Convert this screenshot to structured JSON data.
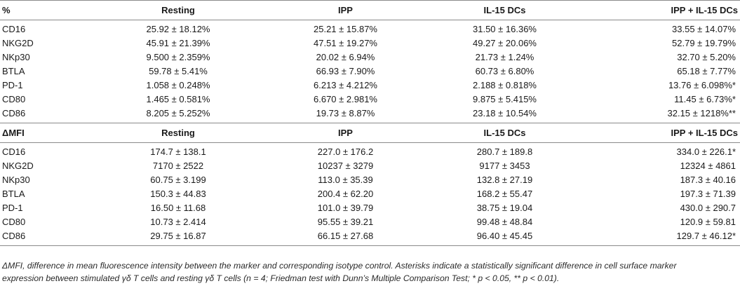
{
  "sections": [
    {
      "unit_label": "%",
      "columns": [
        "Resting",
        "IPP",
        "IL-15 DCs",
        "IPP + IL-15 DCs"
      ],
      "rows": [
        {
          "marker": "CD16",
          "values": [
            "25.92 ± 18.12%",
            "25.21 ± 15.87%",
            "31.50 ± 16.36%",
            "33.55 ± 14.07%"
          ]
        },
        {
          "marker": "NKG2D",
          "values": [
            "45.91 ± 21.39%",
            "47.51 ± 19.27%",
            "49.27 ± 20.06%",
            "52.79 ± 19.79%"
          ]
        },
        {
          "marker": "NKp30",
          "values": [
            "9.500 ± 2.359%",
            "20.02 ± 6.94%",
            "21.73 ± 1.24%",
            "32.70 ± 5.20%"
          ]
        },
        {
          "marker": "BTLA",
          "values": [
            "59.78 ± 5.41%",
            "66.93 ± 7.90%",
            "60.73 ± 6.80%",
            "65.18 ± 7.77%"
          ]
        },
        {
          "marker": "PD-1",
          "values": [
            "1.058 ± 0.248%",
            "6.213 ± 4.212%",
            "2.188 ± 0.818%",
            "13.76 ± 6.098%*"
          ]
        },
        {
          "marker": "CD80",
          "values": [
            "1.465 ± 0.581%",
            "6.670 ± 2.981%",
            "9.875 ± 5.415%",
            "11.45 ± 6.73%*"
          ]
        },
        {
          "marker": "CD86",
          "values": [
            "8.205 ± 5.252%",
            "19.73 ± 8.87%",
            "23.18 ± 10.54%",
            "32.15 ± 1218%**"
          ]
        }
      ]
    },
    {
      "unit_label": "ΔMFI",
      "columns": [
        "Resting",
        "IPP",
        "IL-15 DCs",
        "IPP + IL-15 DCs"
      ],
      "rows": [
        {
          "marker": "CD16",
          "values": [
            "174.7 ± 138.1",
            "227.0 ± 176.2",
            "280.7 ± 189.8",
            "334.0 ± 226.1*"
          ]
        },
        {
          "marker": "NKG2D",
          "values": [
            "7170 ± 2522",
            "10237 ± 3279",
            "9177 ± 3453",
            "12324 ± 4861"
          ]
        },
        {
          "marker": "NKp30",
          "values": [
            "60.75 ± 3.199",
            "113.0 ± 35.39",
            "132.8 ± 27.19",
            "187.3 ± 40.16"
          ]
        },
        {
          "marker": "BTLA",
          "values": [
            "150.3 ± 44.83",
            "200.4 ± 62.20",
            "168.2 ± 55.47",
            "197.3 ± 71.39"
          ]
        },
        {
          "marker": "PD-1",
          "values": [
            "16.50 ± 11.68",
            "101.0 ± 39.79",
            "38.75 ± 19.04",
            "430.0 ± 290.7"
          ]
        },
        {
          "marker": "CD80",
          "values": [
            "10.73 ± 2.414",
            "95.55 ± 39.21",
            "99.48 ± 48.84",
            "120.9 ± 59.81"
          ]
        },
        {
          "marker": "CD86",
          "values": [
            "29.75 ± 16.87",
            "66.15 ± 27.68",
            "96.40 ± 45.45",
            "129.7 ± 46.12*"
          ]
        }
      ]
    }
  ],
  "footnote_lines": [
    "ΔMFI, difference in mean fluorescence intensity between the marker and corresponding isotype control. Asterisks indicate a statistically significant difference in cell surface marker",
    "expression between stimulated γδ T cells and resting γδ T cells (n = 4; Friedman test with Dunn’s Multiple Comparison Test; * p < 0.05, ** p < 0.01)."
  ]
}
